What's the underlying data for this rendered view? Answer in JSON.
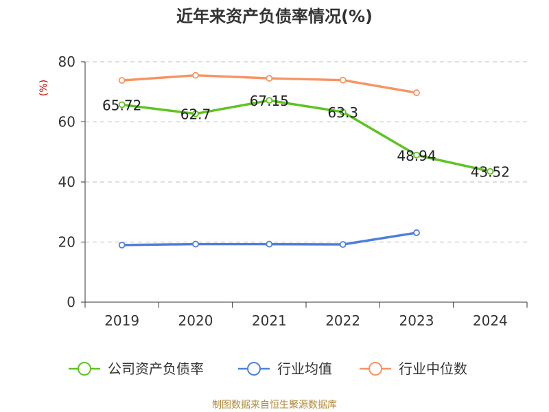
{
  "chart_data": {
    "type": "line",
    "title": "近年来资产负债率情况(%)",
    "unit_label": "(%)",
    "xlabel": "",
    "ylabel": "",
    "x": [
      "2019",
      "2020",
      "2021",
      "2022",
      "2023",
      "2024"
    ],
    "ylim": [
      0,
      80
    ],
    "yticks": [
      0,
      20,
      40,
      60,
      80
    ],
    "grid": true,
    "legend_position": "bottom",
    "series": [
      {
        "name": "公司资产负债率",
        "color": "#5ec321",
        "values": [
          65.72,
          62.7,
          67.15,
          63.3,
          48.94,
          43.52
        ],
        "labels": [
          "65.72",
          "62.7",
          "67.15",
          "63.3",
          "48.94",
          "43.52"
        ]
      },
      {
        "name": "行业均值",
        "color": "#4f7fdc",
        "values": [
          19.0,
          19.3,
          19.3,
          19.2,
          23.1,
          null
        ]
      },
      {
        "name": "行业中位数",
        "color": "#f79464",
        "values": [
          73.8,
          75.5,
          74.5,
          73.9,
          69.7,
          null
        ]
      }
    ]
  },
  "source": "制图数据来自恒生聚源数据库"
}
